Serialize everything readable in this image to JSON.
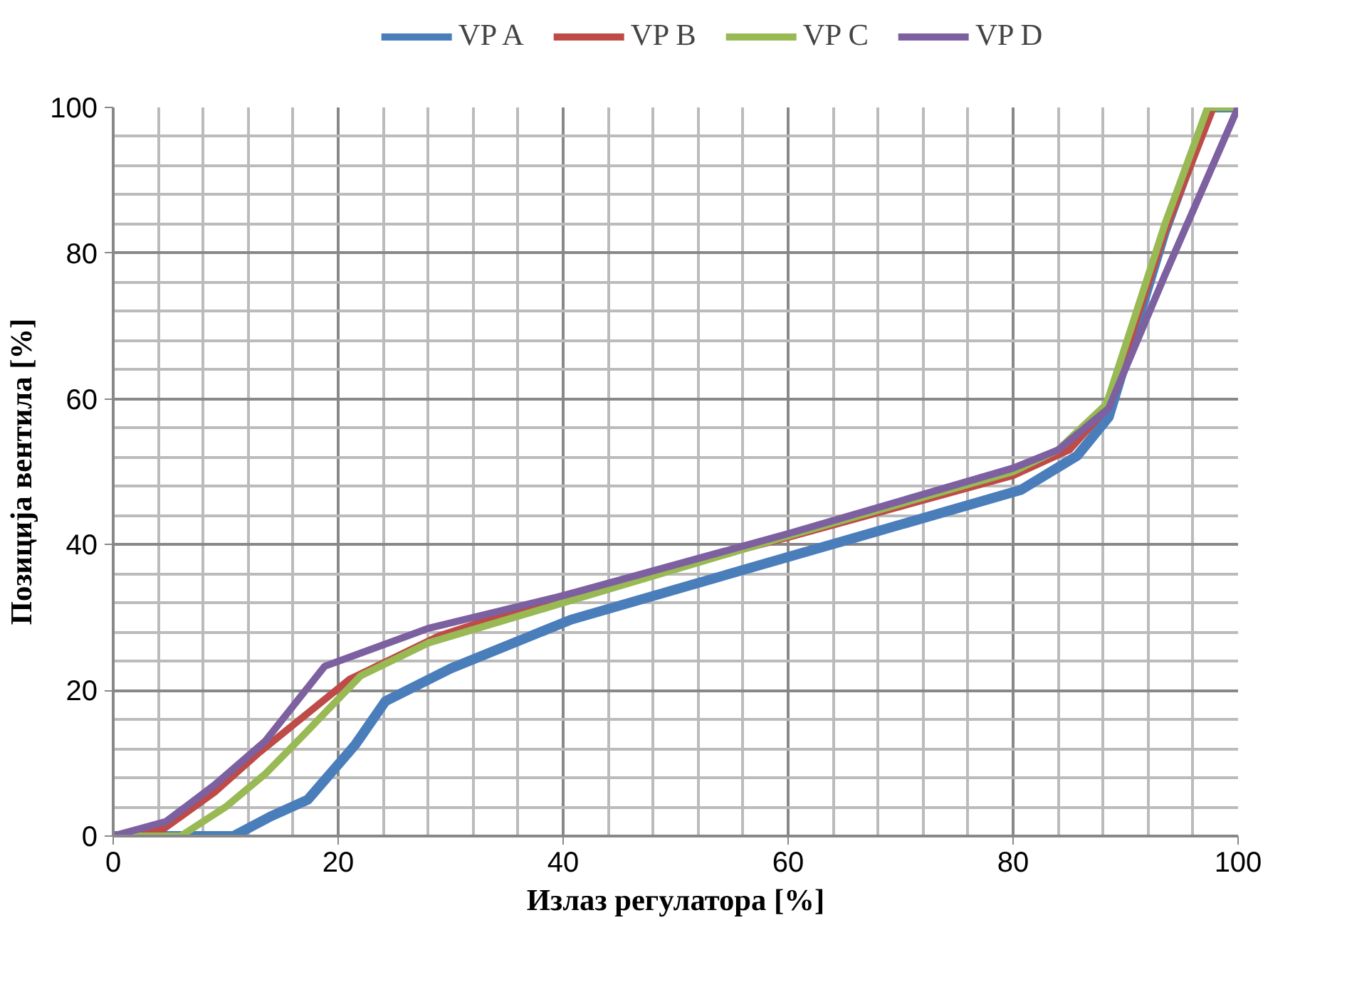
{
  "chart_data": {
    "type": "line",
    "xlabel": "Излаз регулатора [%]",
    "ylabel": "Позиција вентила [%]",
    "xlim": [
      0,
      100
    ],
    "ylim": [
      0,
      100
    ],
    "xticks": [
      0,
      20,
      40,
      60,
      80,
      100
    ],
    "yticks": [
      0,
      20,
      40,
      60,
      80,
      100
    ],
    "grid": true,
    "legend": "top",
    "marker": "none",
    "line_style": "solid",
    "series": [
      {
        "name": "VP A",
        "color": "#4a7ebb",
        "x": [
          0,
          10.7,
          14,
          17.3,
          21.5,
          24.2,
          30,
          40.7,
          60,
          80.7,
          85.7,
          88.5,
          93.5,
          97.5,
          100
        ],
        "values": [
          0,
          0,
          2.7,
          5,
          12.5,
          18.5,
          23,
          29.7,
          38.3,
          47.5,
          52.2,
          57.5,
          83,
          100,
          100
        ]
      },
      {
        "name": "VP B",
        "color": "#be4b48",
        "x": [
          0,
          4.5,
          9,
          13,
          17,
          21,
          29,
          40,
          60,
          80,
          85,
          88.5,
          93.5,
          97.8,
          100
        ],
        "values": [
          0,
          1,
          6,
          11.5,
          16.5,
          21.5,
          27.5,
          33,
          41,
          49.5,
          53,
          59,
          83,
          100,
          100
        ]
      },
      {
        "name": "VP C",
        "color": "#98b954",
        "x": [
          0,
          6,
          10,
          13.5,
          17,
          22,
          28,
          40,
          60,
          80,
          84,
          88.3,
          93.5,
          97.3,
          100
        ],
        "values": [
          0,
          0,
          4,
          8.5,
          14,
          22,
          26.5,
          32,
          41.2,
          50,
          53,
          59.3,
          84,
          100,
          100
        ]
      },
      {
        "name": "VP D",
        "color": "#7d60a0",
        "x": [
          0,
          4.7,
          9,
          13.5,
          18.8,
          28,
          40,
          60,
          80,
          84,
          88.5,
          93.5,
          100
        ],
        "values": [
          0,
          2,
          7,
          13,
          23.3,
          28.5,
          33,
          41.5,
          50.5,
          53,
          58.7,
          77,
          100
        ]
      }
    ]
  }
}
